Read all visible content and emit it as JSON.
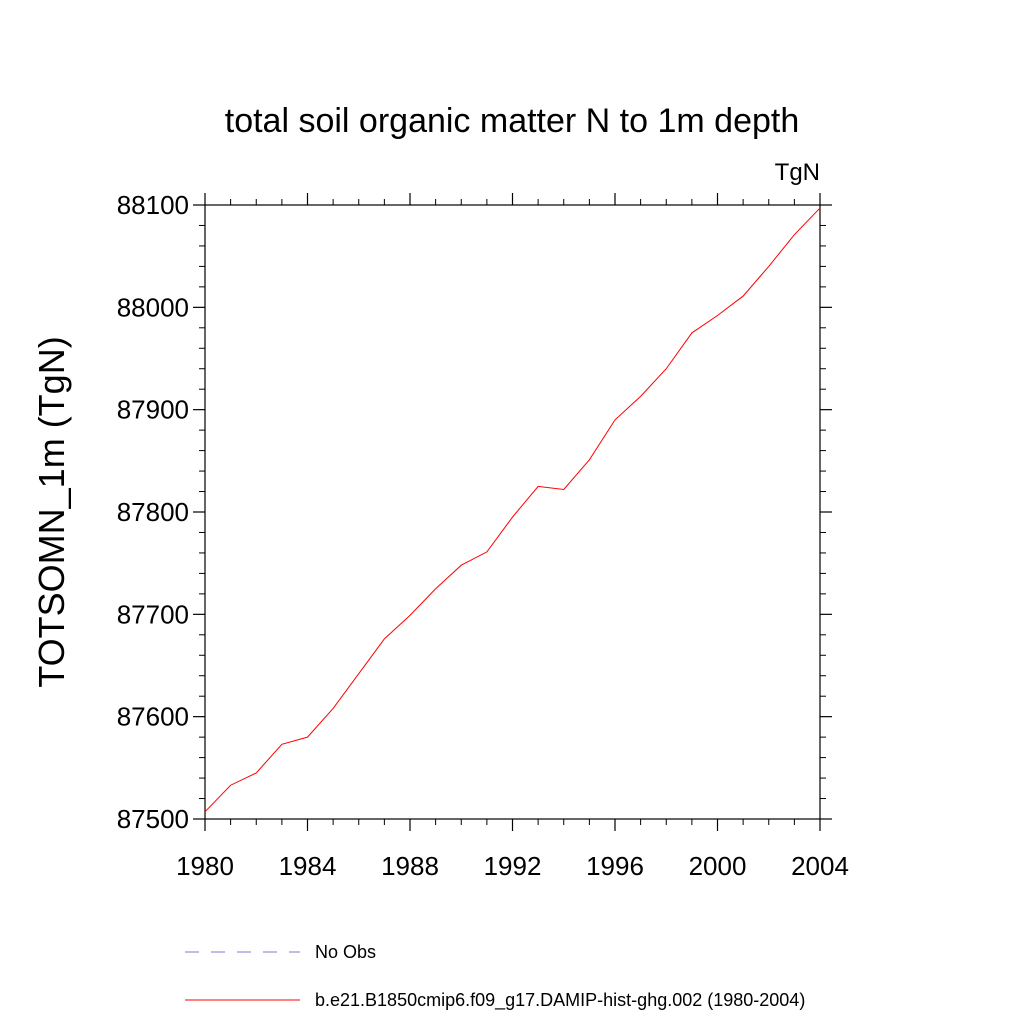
{
  "chart_data": {
    "type": "line",
    "title": "total soil organic matter N to 1m depth",
    "units_label": "TgN",
    "ylabel": "TOTSOMN_1m  (TgN)",
    "xlabel": "",
    "xlim": [
      1980,
      2004
    ],
    "ylim": [
      87500,
      88100
    ],
    "x_ticks": [
      1980,
      1984,
      1988,
      1992,
      1996,
      2000,
      2004
    ],
    "y_ticks": [
      87500,
      87600,
      87700,
      87800,
      87900,
      88000,
      88100
    ],
    "grid": false,
    "legend_position": "bottom",
    "legend": [
      {
        "label": "No Obs",
        "color": "#7b7bd6",
        "style": "dashed"
      },
      {
        "label": "b.e21.B1850cmip6.f09_g17.DAMIP-hist-ghg.002 (1980-2004)",
        "color": "#ff0000",
        "style": "solid"
      }
    ],
    "series": [
      {
        "name": "b.e21.B1850cmip6.f09_g17.DAMIP-hist-ghg.002 (1980-2004)",
        "color": "#ff0000",
        "x": [
          1980,
          1981,
          1982,
          1983,
          1984,
          1985,
          1986,
          1987,
          1988,
          1989,
          1990,
          1991,
          1992,
          1993,
          1994,
          1995,
          1996,
          1997,
          1998,
          1999,
          2000,
          2001,
          2002,
          2003,
          2004
        ],
        "y": [
          87507,
          87533,
          87545,
          87573,
          87580,
          87608,
          87642,
          87676,
          87699,
          87725,
          87748,
          87761,
          87795,
          87825,
          87822,
          87851,
          87890,
          87913,
          87940,
          87975,
          87992,
          88011,
          88040,
          88071,
          88097
        ]
      }
    ]
  }
}
